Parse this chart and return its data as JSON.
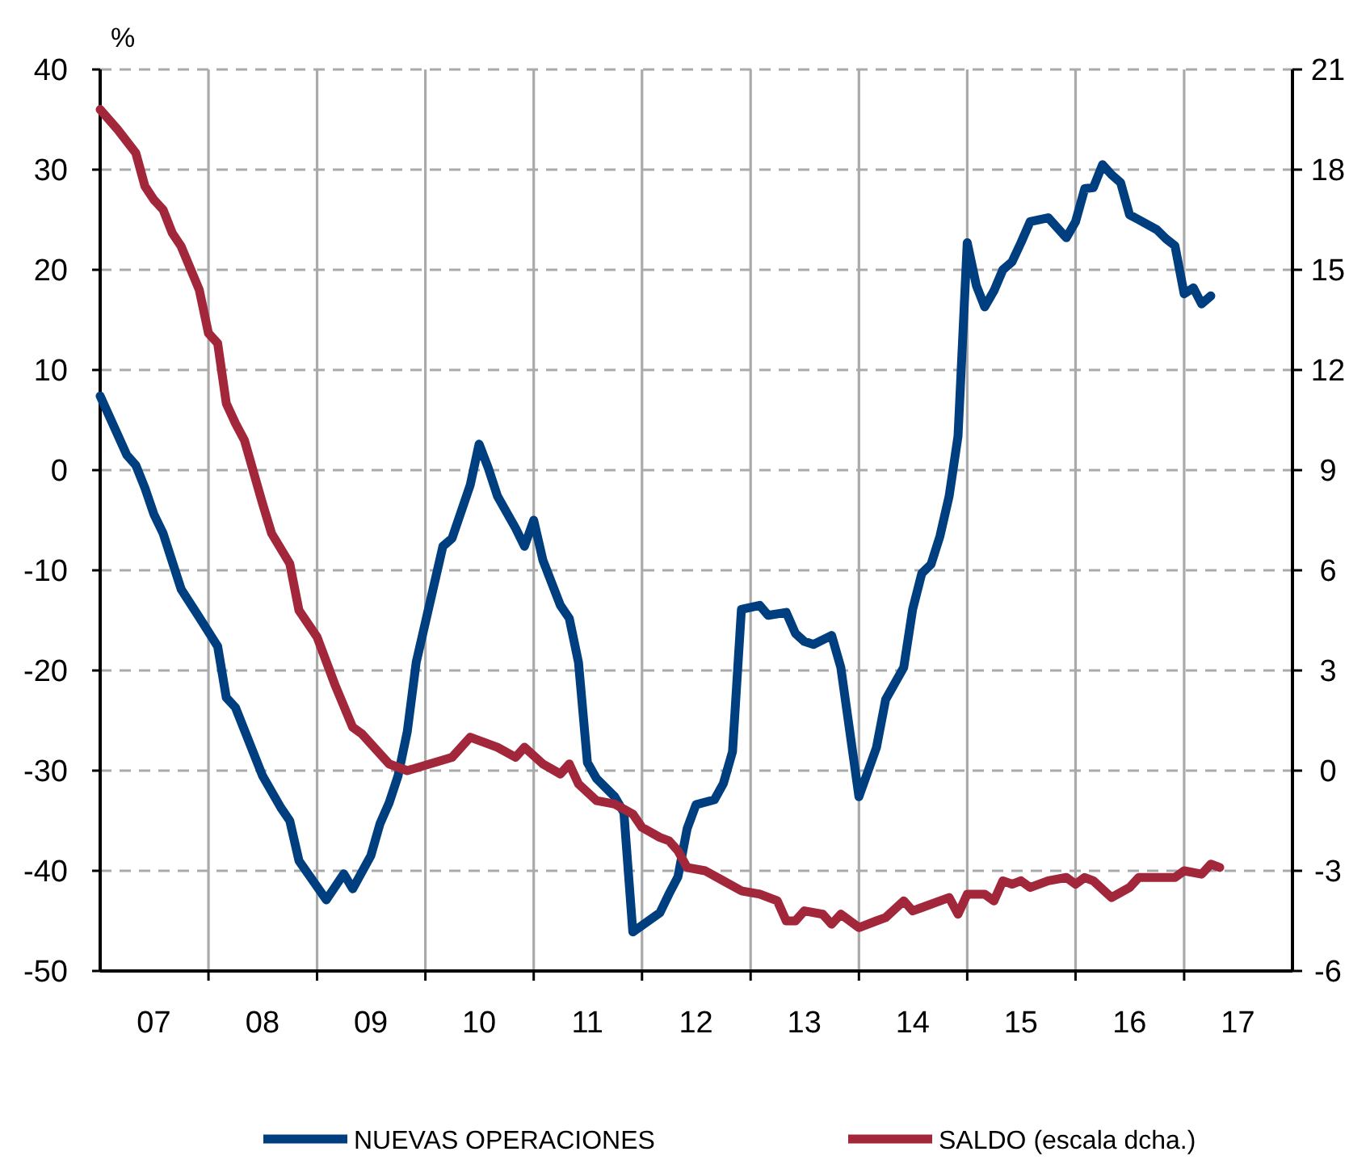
{
  "chart_data": {
    "type": "line",
    "ylabel": "%",
    "xlim": [
      "2007-01",
      "2018-01"
    ],
    "xticks": [
      {
        "value": "2008-01",
        "label": null
      },
      {
        "value": "2009-01",
        "label": null
      },
      {
        "value": "2010-01",
        "label": null
      },
      {
        "value": "2011-01",
        "label": null
      },
      {
        "value": "2012-01",
        "label": null
      },
      {
        "value": "2013-01",
        "label": null
      },
      {
        "value": "2014-01",
        "label": null
      },
      {
        "value": "2015-01",
        "label": null
      },
      {
        "value": "2016-01",
        "label": null
      },
      {
        "value": "2017-01",
        "label": null
      },
      {
        "value": "2007-07",
        "label": "07"
      },
      {
        "value": "2008-07",
        "label": "08"
      },
      {
        "value": "2009-07",
        "label": "09"
      },
      {
        "value": "2010-07",
        "label": "10"
      },
      {
        "value": "2011-07",
        "label": "11"
      },
      {
        "value": "2012-07",
        "label": "12"
      },
      {
        "value": "2013-07",
        "label": "13"
      },
      {
        "value": "2014-07",
        "label": "14"
      },
      {
        "value": "2015-07",
        "label": "15"
      },
      {
        "value": "2016-07",
        "label": "16"
      },
      {
        "value": "2017-07",
        "label": "17"
      }
    ],
    "ylim": [
      -50,
      40
    ],
    "yticks": [
      -50,
      -40,
      -30,
      -20,
      -10,
      0,
      10,
      20,
      30,
      40
    ],
    "y2lim": [
      -6,
      21
    ],
    "y2ticks": [
      -6,
      -3,
      0,
      3,
      6,
      9,
      12,
      15,
      18,
      21
    ],
    "grid": true,
    "legend": "bottom",
    "line_style": "solid",
    "series": [
      {
        "name": "NUEVAS OPERACIONES",
        "color": "#003f7f",
        "x": [
          "2007-01",
          "2007-04",
          "2007-05",
          "2007-06",
          "2007-07",
          "2007-08",
          "2007-10",
          "2007-12",
          "2008-02",
          "2008-03",
          "2008-04",
          "2008-07",
          "2008-09",
          "2008-10",
          "2008-11",
          "2009-02",
          "2009-04",
          "2009-05",
          "2009-07",
          "2009-08",
          "2009-09",
          "2009-10",
          "2009-11",
          "2009-12",
          "2010-03",
          "2010-04",
          "2010-06",
          "2010-07",
          "2010-08",
          "2010-09",
          "2010-11",
          "2010-12",
          "2011-01",
          "2011-02",
          "2011-04",
          "2011-05",
          "2011-06",
          "2011-07",
          "2011-08",
          "2011-10",
          "2011-11",
          "2011-12",
          "2012-03",
          "2012-04",
          "2012-05",
          "2012-06",
          "2012-07",
          "2012-09",
          "2012-10",
          "2012-11",
          "2012-12",
          "2013-02",
          "2013-03",
          "2013-05",
          "2013-06",
          "2013-07",
          "2013-08",
          "2013-10",
          "2013-11",
          "2014-01",
          "2014-03",
          "2014-04",
          "2014-06",
          "2014-07",
          "2014-08",
          "2014-09",
          "2014-10",
          "2014-11",
          "2014-12",
          "2015-01",
          "2015-02",
          "2015-03",
          "2015-04",
          "2015-05",
          "2015-06",
          "2015-07",
          "2015-08",
          "2015-10",
          "2015-12",
          "2016-01",
          "2016-02",
          "2016-03",
          "2016-04",
          "2016-05",
          "2016-06",
          "2016-07",
          "2016-08",
          "2016-10",
          "2016-11",
          "2016-12",
          "2017-01",
          "2017-02",
          "2017-03",
          "2017-04"
        ],
        "values": [
          7.4,
          1.5,
          0.5,
          -1.8,
          -4.4,
          -6.3,
          -11.9,
          -14.7,
          -17.6,
          -22.7,
          -23.7,
          -30.5,
          -33.7,
          -35,
          -39,
          -42.9,
          -40.3,
          -41.8,
          -38.5,
          -35.3,
          -33.2,
          -30.5,
          -26.1,
          -19.2,
          -7.6,
          -6.8,
          -1.5,
          2.6,
          0.2,
          -2.6,
          -5.8,
          -7.6,
          -5,
          -9,
          -13.5,
          -14.8,
          -19.2,
          -29.2,
          -30.8,
          -32.6,
          -34.2,
          -46.1,
          -44.2,
          -42.3,
          -40.6,
          -35.8,
          -33.4,
          -32.9,
          -31.3,
          -28.1,
          -13.9,
          -13.5,
          -14.5,
          -14.2,
          -16.3,
          -17.1,
          -17.4,
          -16.5,
          -19.7,
          -32.6,
          -27.7,
          -22.9,
          -19.7,
          -13.9,
          -10.3,
          -9.4,
          -6.6,
          -2.6,
          3.4,
          22.7,
          18.4,
          16.3,
          17.9,
          20,
          20.8,
          22.7,
          24.8,
          25.2,
          23.2,
          24.8,
          28.1,
          28.2,
          30.5,
          29.5,
          28.7,
          25.5,
          25,
          24,
          23.1,
          22.4,
          17.6,
          18.2,
          16.6,
          17.4
        ]
      },
      {
        "name": "SALDO (escala dcha.)",
        "color": "#a3273a",
        "axis": "y2",
        "x": [
          "2007-01",
          "2007-03",
          "2007-05",
          "2007-06",
          "2007-07",
          "2007-08",
          "2007-09",
          "2007-10",
          "2007-12",
          "2008-01",
          "2008-02",
          "2008-03",
          "2008-04",
          "2008-05",
          "2008-07",
          "2008-08",
          "2008-10",
          "2008-11",
          "2009-01",
          "2009-03",
          "2009-05",
          "2009-06",
          "2009-09",
          "2009-11",
          "2010-04",
          "2010-06",
          "2010-09",
          "2010-11",
          "2010-12",
          "2011-02",
          "2011-04",
          "2011-05",
          "2011-06",
          "2011-08",
          "2011-10",
          "2011-12",
          "2012-01",
          "2012-03",
          "2012-04",
          "2012-05",
          "2012-06",
          "2012-08",
          "2012-10",
          "2012-12",
          "2013-02",
          "2013-04",
          "2013-05",
          "2013-06",
          "2013-07",
          "2013-09",
          "2013-10",
          "2013-11",
          "2014-01",
          "2014-03",
          "2014-04",
          "2014-06",
          "2014-07",
          "2014-08",
          "2014-11",
          "2014-12",
          "2015-01",
          "2015-03",
          "2015-04",
          "2015-05",
          "2015-06",
          "2015-07",
          "2015-08",
          "2015-10",
          "2015-12",
          "2016-01",
          "2016-02",
          "2016-03",
          "2016-05",
          "2016-07",
          "2016-08",
          "2016-09",
          "2016-12",
          "2017-01",
          "2017-03",
          "2017-04",
          "2017-05"
        ],
        "values": [
          19.8,
          19.2,
          18.5,
          17.5,
          17.1,
          16.8,
          16.1,
          15.7,
          14.4,
          13.1,
          12.8,
          11,
          10.4,
          9.9,
          8,
          7.1,
          6.2,
          4.8,
          4,
          2.6,
          1.3,
          1.1,
          0.2,
          0,
          0.4,
          1,
          0.7,
          0.4,
          0.7,
          0.2,
          -0.1,
          0.2,
          -0.4,
          -0.9,
          -1,
          -1.3,
          -1.7,
          -2,
          -2.1,
          -2.4,
          -2.9,
          -3,
          -3.3,
          -3.6,
          -3.7,
          -3.9,
          -4.5,
          -4.5,
          -4.2,
          -4.3,
          -4.6,
          -4.3,
          -4.7,
          -4.5,
          -4.4,
          -3.9,
          -4.2,
          -4.1,
          -3.8,
          -4.3,
          -3.7,
          -3.7,
          -3.9,
          -3.3,
          -3.4,
          -3.3,
          -3.5,
          -3.3,
          -3.2,
          -3.4,
          -3.2,
          -3.3,
          -3.8,
          -3.5,
          -3.2,
          -3.2,
          -3.2,
          -3,
          -3.1,
          -2.8,
          -2.9
        ]
      }
    ]
  }
}
